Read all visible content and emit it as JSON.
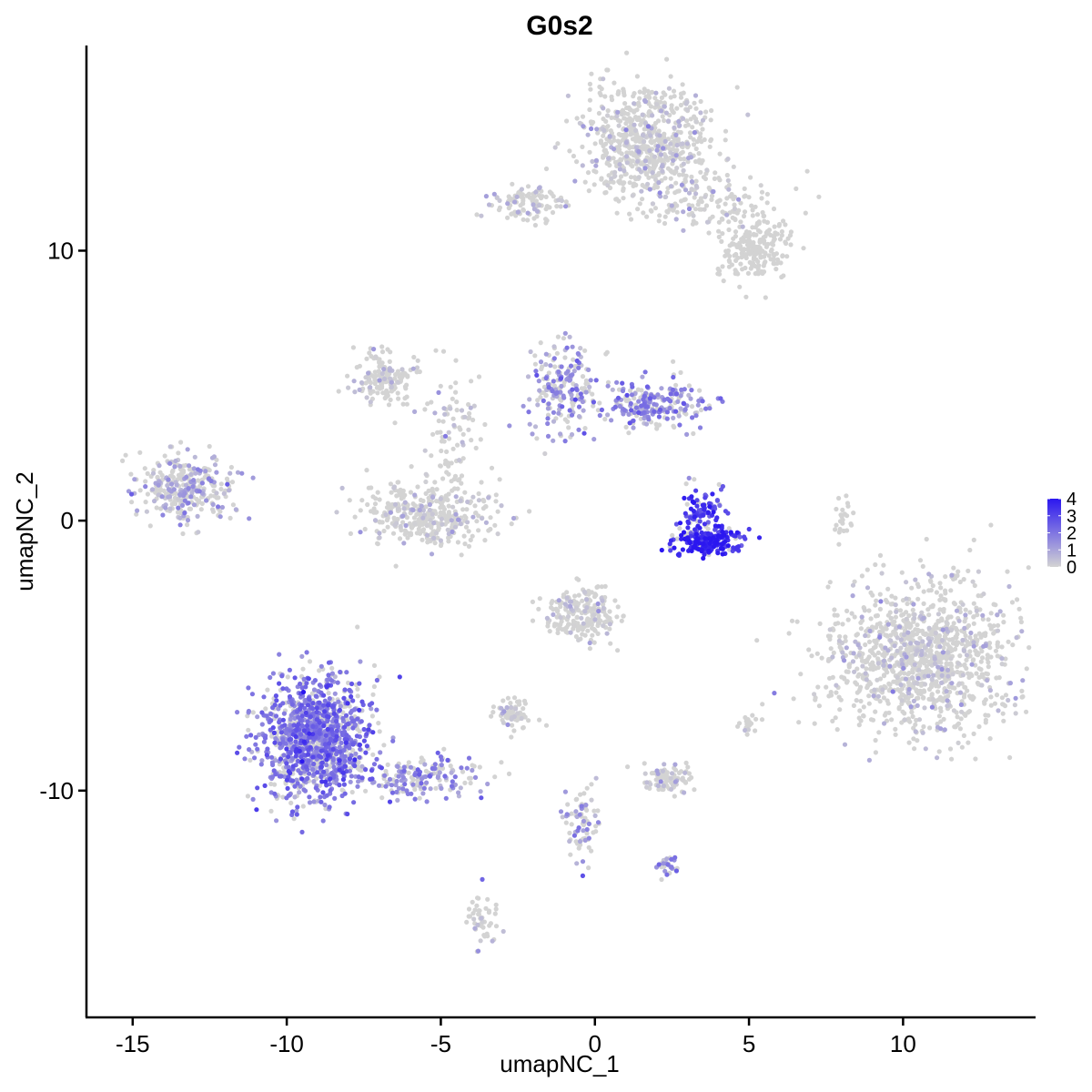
{
  "chart_data": {
    "type": "scatter",
    "title": "G0s2",
    "xlabel": "umapNC_1",
    "ylabel": "umapNC_2",
    "xlim": [
      -16.5,
      14.3
    ],
    "ylim": [
      -18.4,
      17.6
    ],
    "x_ticks": [
      -15,
      -10,
      -5,
      0,
      5,
      10
    ],
    "x_tick_labels": [
      "-15",
      "-10",
      "-5",
      "0",
      "5",
      "10"
    ],
    "y_ticks": [
      -10,
      0,
      10
    ],
    "y_tick_labels": [
      "-10",
      "0",
      "10"
    ],
    "grid": false,
    "legend": {
      "position": "right",
      "min": 0,
      "max": 4,
      "ticks": [
        "0",
        "1",
        "2",
        "3",
        "4"
      ],
      "low_color": "#d3d3d3",
      "high_color": "#2b17f0"
    },
    "clusters": [
      {
        "id": "top-dense",
        "cx": 1.7,
        "cy": 14.0,
        "sx": 1.0,
        "sy": 1.1,
        "n": 700,
        "expr": 0.05
      },
      {
        "id": "top-arm-left",
        "cx": -2.2,
        "cy": 11.8,
        "sx": 0.6,
        "sy": 0.3,
        "n": 110,
        "expr": 0.25
      },
      {
        "id": "top-arm-right",
        "cx": 5.2,
        "cy": 10.1,
        "sx": 0.6,
        "sy": 0.6,
        "n": 220,
        "expr": 0.0
      },
      {
        "id": "top-branch",
        "cx": 3.6,
        "cy": 11.8,
        "sx": 1.2,
        "sy": 0.5,
        "n": 120,
        "expr": 0.03
      },
      {
        "id": "left-mid",
        "cx": -13.3,
        "cy": 1.2,
        "sx": 0.8,
        "sy": 0.6,
        "n": 320,
        "expr": 0.9
      },
      {
        "id": "upper-left-fan",
        "cx": -6.8,
        "cy": 5.3,
        "sx": 0.5,
        "sy": 0.5,
        "n": 160,
        "expr": 0.05
      },
      {
        "id": "central-basin",
        "cx": -5.5,
        "cy": 0.3,
        "sx": 1.1,
        "sy": 0.6,
        "n": 380,
        "expr": 0.12
      },
      {
        "id": "central-stem",
        "cx": -4.6,
        "cy": 3.5,
        "sx": 0.4,
        "sy": 1.2,
        "n": 80,
        "expr": 0.08
      },
      {
        "id": "mid-right-a",
        "cx": -1.1,
        "cy": 5.0,
        "sx": 0.5,
        "sy": 0.9,
        "n": 200,
        "expr": 1.3
      },
      {
        "id": "mid-right-b",
        "cx": 1.8,
        "cy": 4.3,
        "sx": 0.9,
        "sy": 0.45,
        "n": 240,
        "expr": 1.7
      },
      {
        "id": "crescent-core",
        "cx": 3.7,
        "cy": -0.8,
        "sx": 0.55,
        "sy": 0.25,
        "n": 200,
        "expr": 3.6
      },
      {
        "id": "crescent-arm",
        "cx": 3.5,
        "cy": 0.2,
        "sx": 0.35,
        "sy": 0.5,
        "n": 110,
        "expr": 3.0
      },
      {
        "id": "right-big",
        "cx": 10.6,
        "cy": -5.1,
        "sx": 1.5,
        "sy": 1.4,
        "n": 1200,
        "expr": 0.03
      },
      {
        "id": "center-lower",
        "cx": -0.5,
        "cy": -3.5,
        "sx": 0.6,
        "sy": 0.5,
        "n": 220,
        "expr": 0.1
      },
      {
        "id": "lower-left-big",
        "cx": -9.1,
        "cy": -8.1,
        "sx": 0.85,
        "sy": 1.1,
        "n": 1200,
        "expr": 2.0
      },
      {
        "id": "lower-left-tail",
        "cx": -5.6,
        "cy": -9.4,
        "sx": 1.0,
        "sy": 0.4,
        "n": 170,
        "expr": 1.5
      },
      {
        "id": "small-mid",
        "cx": -2.7,
        "cy": -7.2,
        "sx": 0.3,
        "sy": 0.25,
        "n": 70,
        "expr": 0.15
      },
      {
        "id": "small-right-mid",
        "cx": 2.3,
        "cy": -9.5,
        "sx": 0.45,
        "sy": 0.25,
        "n": 90,
        "expr": 0.2
      },
      {
        "id": "stream-down",
        "cx": -0.4,
        "cy": -11.2,
        "sx": 0.3,
        "sy": 0.8,
        "n": 80,
        "expr": 1.1
      },
      {
        "id": "small-lower",
        "cx": 2.3,
        "cy": -12.8,
        "sx": 0.2,
        "sy": 0.2,
        "n": 30,
        "expr": 1.6
      },
      {
        "id": "bottom-left-strand",
        "cx": -3.7,
        "cy": -14.8,
        "sx": 0.25,
        "sy": 0.5,
        "n": 50,
        "expr": 0.3
      },
      {
        "id": "right-strand",
        "cx": 8.0,
        "cy": 0.2,
        "sx": 0.15,
        "sy": 0.4,
        "n": 25,
        "expr": 0.0
      },
      {
        "id": "small-r5",
        "cx": 5.0,
        "cy": -7.4,
        "sx": 0.15,
        "sy": 0.2,
        "n": 20,
        "expr": 0.4
      }
    ]
  }
}
